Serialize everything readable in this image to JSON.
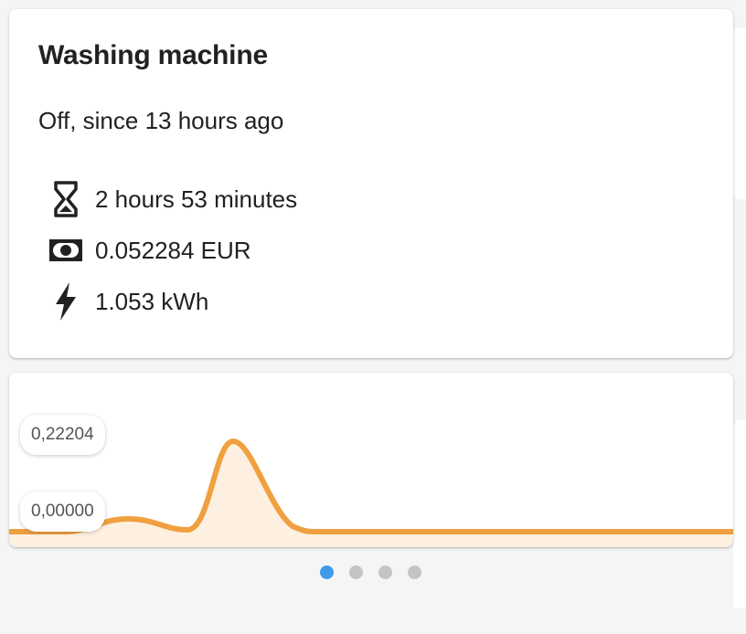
{
  "card": {
    "title": "Washing machine",
    "state": "Off, since 13 hours ago",
    "attributes": [
      {
        "icon": "hourglass-icon",
        "value": "2 hours 53 minutes"
      },
      {
        "icon": "cash-icon",
        "value": "0.052284 EUR"
      },
      {
        "icon": "lightning-bolt-icon",
        "value": "1.053 kWh"
      }
    ]
  },
  "graph": {
    "max_label": "0,22204",
    "min_label": "0,00000",
    "line_color": "#f0a040",
    "fill_color": "#fdf0e0"
  },
  "pagination": {
    "count": 4,
    "active_index": 0,
    "active_color": "#3d9be9"
  }
}
